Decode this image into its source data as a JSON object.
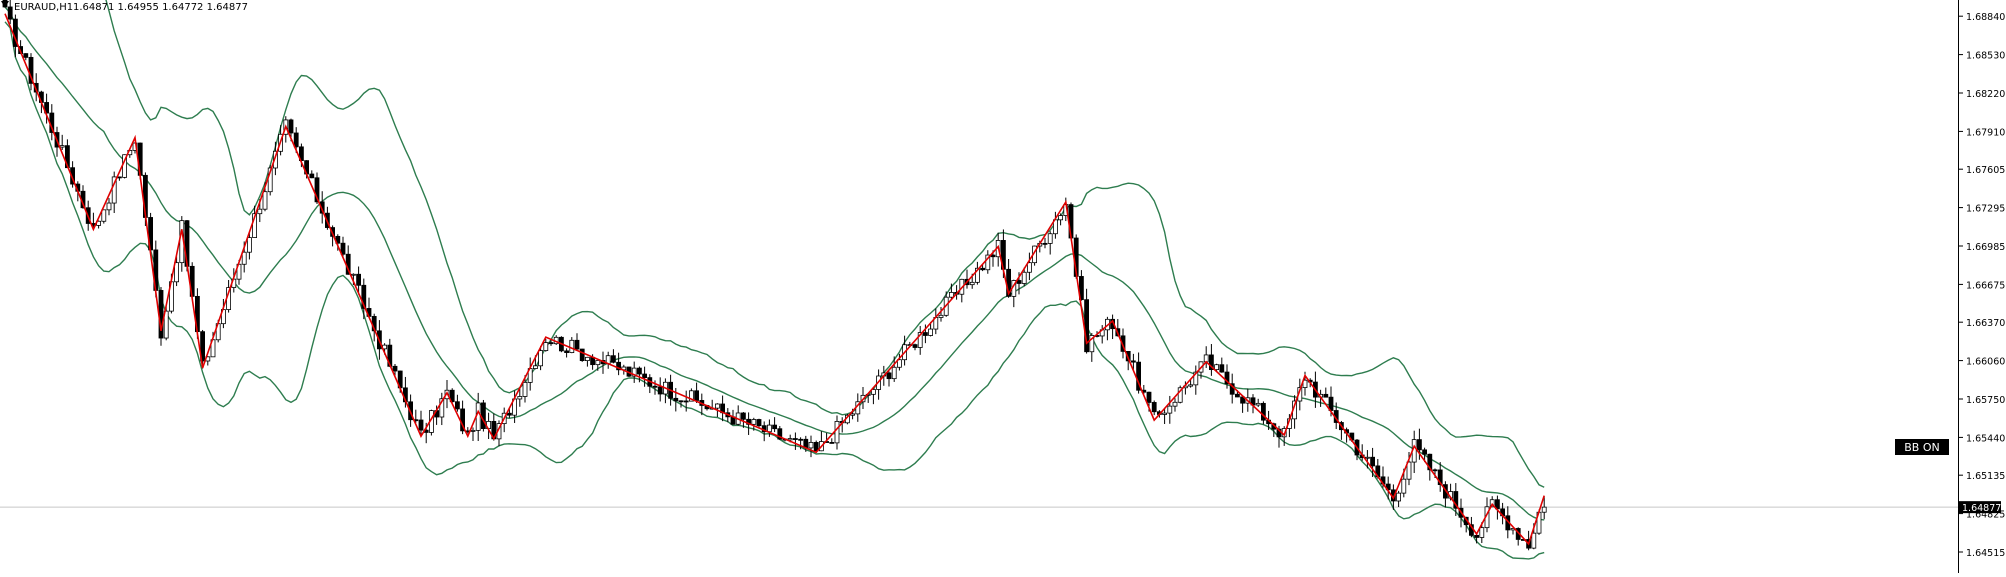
{
  "header": {
    "symbol_timeframe": "EURAUD,H1",
    "ohlc": "1.64871 1.64955 1.64772 1.64877"
  },
  "indicator_label": "BB ON",
  "colors": {
    "background": "#ffffff",
    "bull_body": "#ffffff",
    "bear_body": "#000000",
    "wick": "#000000",
    "bollinger": "#2e7d4f",
    "zigzag": "#e00000",
    "price_line": "#c8c8c8",
    "axis_label_bg": "#000000",
    "axis_label_fg": "#ffffff"
  },
  "chart_data": {
    "type": "candlestick",
    "y_ticks": [
      "1.68840",
      "1.68530",
      "1.68220",
      "1.67910",
      "1.67605",
      "1.67295",
      "1.66985",
      "1.66675",
      "1.66370",
      "1.66060",
      "1.65750",
      "1.65440",
      "1.65135",
      "1.64825",
      "1.64515"
    ],
    "ylim": [
      1.6441,
      1.6889
    ],
    "current_price": 1.64877,
    "current_price_label": "1.64877",
    "series": [
      {
        "bars": 300
      }
    ],
    "zigzag_points": [
      {
        "bar": 0,
        "price": 1.6886
      },
      {
        "bar": 17,
        "price": 1.6712
      },
      {
        "bar": 25,
        "price": 1.6786
      },
      {
        "bar": 30,
        "price": 1.663
      },
      {
        "bar": 34,
        "price": 1.6712
      },
      {
        "bar": 38,
        "price": 1.66
      },
      {
        "bar": 54,
        "price": 1.6795
      },
      {
        "bar": 80,
        "price": 1.6545
      },
      {
        "bar": 85,
        "price": 1.658
      },
      {
        "bar": 89,
        "price": 1.6545
      },
      {
        "bar": 91,
        "price": 1.6565
      },
      {
        "bar": 94,
        "price": 1.6543
      },
      {
        "bar": 104,
        "price": 1.6625
      },
      {
        "bar": 156,
        "price": 1.6532
      },
      {
        "bar": 191,
        "price": 1.6698
      },
      {
        "bar": 193,
        "price": 1.666
      },
      {
        "bar": 204,
        "price": 1.6734
      },
      {
        "bar": 208,
        "price": 1.662
      },
      {
        "bar": 213,
        "price": 1.6638
      },
      {
        "bar": 221,
        "price": 1.6558
      },
      {
        "bar": 231,
        "price": 1.6605
      },
      {
        "bar": 246,
        "price": 1.6546
      },
      {
        "bar": 250,
        "price": 1.6594
      },
      {
        "bar": 267,
        "price": 1.6495
      },
      {
        "bar": 271,
        "price": 1.6537
      },
      {
        "bar": 283,
        "price": 1.6466
      },
      {
        "bar": 286,
        "price": 1.649
      },
      {
        "bar": 293,
        "price": 1.6458
      },
      {
        "bar": 296,
        "price": 1.6497
      }
    ]
  }
}
